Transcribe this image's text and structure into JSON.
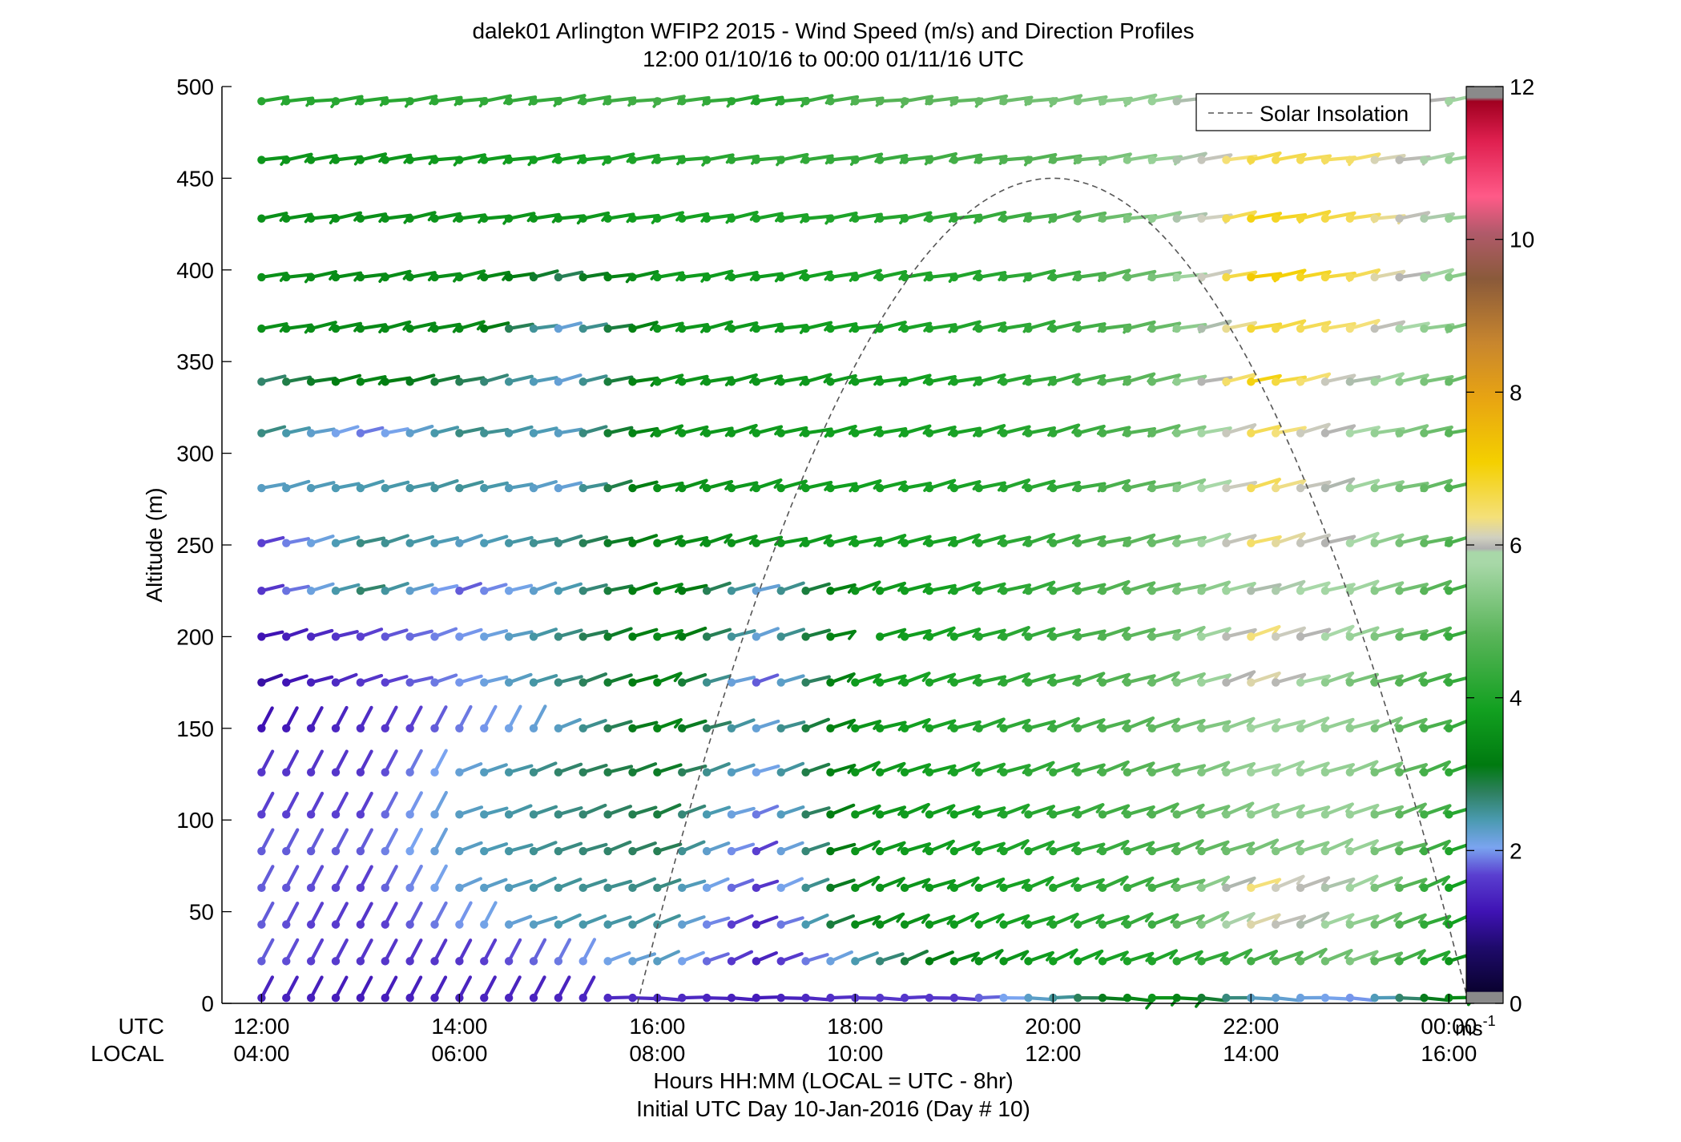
{
  "title_line1": "dalek01 Arlington WFIP2 2015 - Wind Speed (m/s) and Direction Profiles",
  "title_line2": "12:00 01/10/16 to 00:00 01/11/16  UTC",
  "ylabel": "Altitude (m)",
  "row_label_utc": "UTC",
  "row_label_local": "LOCAL",
  "xlabel_line1": "Hours HH:MM  (LOCAL = UTC - 8hr)",
  "xlabel_line2": "Initial UTC Day 10-Jan-2016 (Day # 10)",
  "legend_label": "Solar Insolation",
  "colorbar_unit": "ms",
  "colorbar_unit_exp": "-1",
  "chart_data": {
    "type": "wind-barb-profile",
    "x_range_hours": [
      11.6,
      24.2
    ],
    "ylim": [
      0,
      500
    ],
    "yticks": [
      0,
      50,
      100,
      150,
      200,
      250,
      300,
      350,
      400,
      450,
      500
    ],
    "ytick_labels": [
      "0",
      "50",
      "100",
      "150",
      "200",
      "250",
      "300",
      "350",
      "400",
      "450",
      "500"
    ],
    "xticks_hours": [
      12,
      14,
      16,
      18,
      20,
      22,
      24
    ],
    "xtick_labels_utc": [
      "12:00",
      "14:00",
      "16:00",
      "18:00",
      "20:00",
      "22:00",
      "00:00"
    ],
    "xtick_labels_local": [
      "04:00",
      "06:00",
      "08:00",
      "10:00",
      "12:00",
      "14:00",
      "16:00"
    ],
    "altitudes": [
      3,
      23,
      43,
      63,
      83,
      103,
      126,
      150,
      175,
      200,
      225,
      251,
      281,
      311,
      339,
      368,
      396,
      428,
      460,
      492
    ],
    "time_start_hours": 12.0,
    "time_step_hours": 0.25,
    "time_count": 49,
    "solar_insolation": {
      "peak_altitude": 450,
      "peak_hour": 20.0,
      "start_hour": 15.8,
      "end_hour": 24.2
    },
    "colorbar": {
      "min": 0,
      "max": 12,
      "ticks": [
        0,
        2,
        4,
        6,
        8,
        10,
        12
      ],
      "tick_labels": [
        "0",
        "2",
        "4",
        "6",
        "8",
        "10",
        "12"
      ]
    },
    "speed_anchor_times": [
      12,
      13,
      14,
      15,
      16,
      17,
      18,
      19,
      20,
      21,
      22,
      23,
      24
    ],
    "speed_profiles": [
      {
        "alt": 3,
        "speeds": [
          1.4,
          1.3,
          1.4,
          1.4,
          1.5,
          1.3,
          1.6,
          1.6,
          2.5,
          3.6,
          2.3,
          2.0,
          3.4
        ]
      },
      {
        "alt": 23,
        "speeds": [
          1.8,
          1.6,
          1.6,
          1.9,
          2.3,
          1.4,
          2.4,
          3.4,
          3.8,
          4.0,
          4.5,
          5.3,
          3.6
        ]
      },
      {
        "alt": 43,
        "speeds": [
          1.8,
          1.6,
          2.0,
          2.4,
          2.5,
          1.4,
          3.4,
          3.7,
          4.0,
          4.4,
          6.3,
          5.5,
          3.8
        ]
      },
      {
        "alt": 63,
        "speeds": [
          1.8,
          1.7,
          2.2,
          2.5,
          2.6,
          1.6,
          3.5,
          3.7,
          4.0,
          4.5,
          6.4,
          5.7,
          3.8
        ]
      },
      {
        "alt": 83,
        "speeds": [
          1.8,
          1.8,
          2.3,
          2.6,
          2.8,
          1.7,
          3.6,
          3.8,
          4.1,
          4.6,
          5.2,
          5.6,
          4.0
        ]
      },
      {
        "alt": 103,
        "speeds": [
          1.7,
          1.7,
          2.3,
          2.6,
          2.9,
          1.9,
          3.6,
          3.8,
          4.2,
          4.7,
          5.5,
          5.6,
          4.1
        ]
      },
      {
        "alt": 126,
        "speeds": [
          1.6,
          1.6,
          2.2,
          2.7,
          3.0,
          2.1,
          3.6,
          3.9,
          4.3,
          4.9,
          5.7,
          5.5,
          4.2
        ]
      },
      {
        "alt": 150,
        "speeds": [
          1.2,
          1.5,
          1.9,
          2.3,
          3.3,
          2.2,
          3.6,
          4.0,
          4.4,
          4.9,
          5.7,
          5.5,
          4.3
        ]
      },
      {
        "alt": 175,
        "speeds": [
          1.1,
          1.6,
          2.0,
          2.6,
          3.3,
          1.8,
          3.7,
          4.0,
          4.4,
          5.0,
          6.3,
          5.2,
          4.3
        ]
      },
      {
        "alt": 200,
        "speeds": [
          1.2,
          1.7,
          2.0,
          2.6,
          3.4,
          2.2,
          3.6,
          3.9,
          4.4,
          5.0,
          6.4,
          5.6,
          4.3
        ]
      },
      {
        "alt": 225,
        "speeds": [
          1.6,
          2.7,
          1.8,
          2.4,
          3.4,
          2.2,
          3.6,
          3.9,
          4.4,
          5.0,
          5.9,
          5.7,
          4.5
        ]
      },
      {
        "alt": 251,
        "speeds": [
          1.7,
          2.6,
          2.3,
          2.6,
          3.4,
          3.6,
          3.8,
          3.9,
          4.4,
          5.0,
          6.5,
          5.8,
          4.6
        ]
      },
      {
        "alt": 281,
        "speeds": [
          2.3,
          2.4,
          2.5,
          2.2,
          3.5,
          3.7,
          3.8,
          3.9,
          4.2,
          5.0,
          6.6,
          5.7,
          4.7
        ]
      },
      {
        "alt": 311,
        "speeds": [
          2.6,
          1.9,
          2.6,
          2.3,
          3.6,
          3.7,
          3.8,
          3.9,
          4.2,
          4.9,
          6.6,
          5.8,
          4.8
        ]
      },
      {
        "alt": 339,
        "speeds": [
          2.7,
          3.3,
          2.8,
          2.2,
          3.6,
          3.6,
          3.7,
          3.9,
          4.3,
          5.0,
          7.0,
          5.9,
          5.0
        ]
      },
      {
        "alt": 368,
        "speeds": [
          3.5,
          3.4,
          3.4,
          2.2,
          3.6,
          3.7,
          3.8,
          4.0,
          4.3,
          5.0,
          6.8,
          6.4,
          5.2
        ]
      },
      {
        "alt": 396,
        "speeds": [
          3.5,
          3.4,
          3.5,
          2.8,
          3.7,
          3.7,
          3.9,
          4.0,
          4.3,
          5.2,
          7.2,
          6.6,
          5.4
        ]
      },
      {
        "alt": 428,
        "speeds": [
          3.5,
          3.5,
          3.6,
          3.6,
          3.8,
          3.9,
          4.0,
          4.2,
          4.6,
          5.5,
          7.0,
          6.6,
          5.6
        ]
      },
      {
        "alt": 460,
        "speeds": [
          3.6,
          3.6,
          3.7,
          3.8,
          4.0,
          4.2,
          4.3,
          4.5,
          4.8,
          5.6,
          6.7,
          6.5,
          5.6
        ]
      },
      {
        "alt": 492,
        "speeds": [
          4.1,
          4.1,
          4.2,
          4.3,
          4.5,
          4.0,
          4.7,
          4.9,
          5.2,
          5.6,
          6.8,
          6.8,
          5.7
        ]
      }
    ],
    "direction_notes": "barbs point up-right (from WSW) aloft; near-surface morning barbs point down-left (NE flow)"
  }
}
